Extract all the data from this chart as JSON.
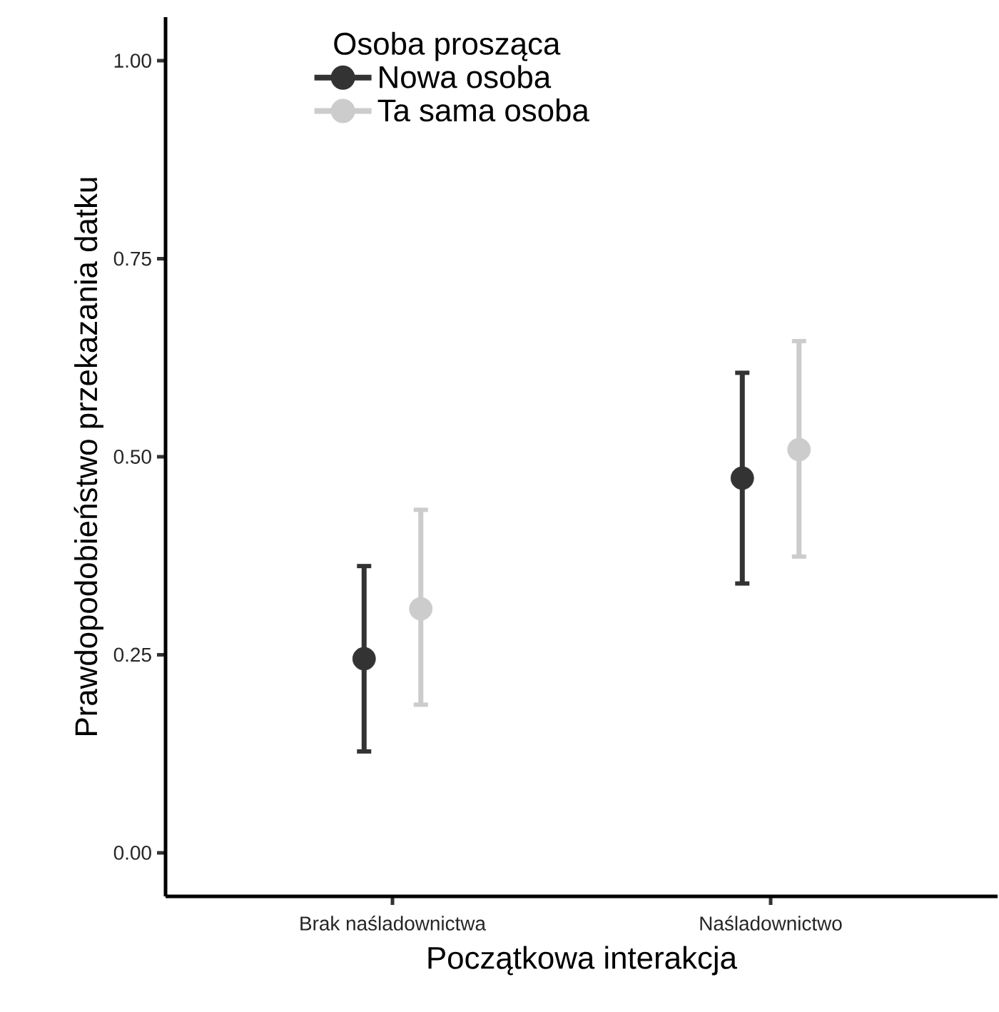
{
  "chart_data": {
    "type": "scatter",
    "xlabel": "Początkowa interakcja",
    "ylabel": "Prawdopodobieństwo przekazania datku",
    "legend_title": "Osoba prosząca",
    "categories": [
      "Brak naśladownictwa",
      "Naśladownictwo"
    ],
    "ylim": [
      -0.055,
      1.055
    ],
    "yticks": [
      {
        "value": 0,
        "label": "0.00"
      },
      {
        "value": 0.25,
        "label": "0.25"
      },
      {
        "value": 0.5,
        "label": "0.50"
      },
      {
        "value": 0.75,
        "label": "0.75"
      },
      {
        "value": 1,
        "label": "1.00"
      }
    ],
    "grid": false,
    "legend": "top left",
    "marker": "circle",
    "series": [
      {
        "name": "Nowa osoba",
        "color": "#333333",
        "values": [
          0.245,
          0.473
        ],
        "errors": [
          [
            0.128,
            0.362
          ],
          [
            0.34,
            0.606
          ]
        ]
      },
      {
        "name": "Ta sama osoba",
        "color": "#cccccc",
        "values": [
          0.308,
          0.509
        ],
        "errors": [
          [
            0.187,
            0.433
          ],
          [
            0.374,
            0.646
          ]
        ]
      }
    ]
  }
}
